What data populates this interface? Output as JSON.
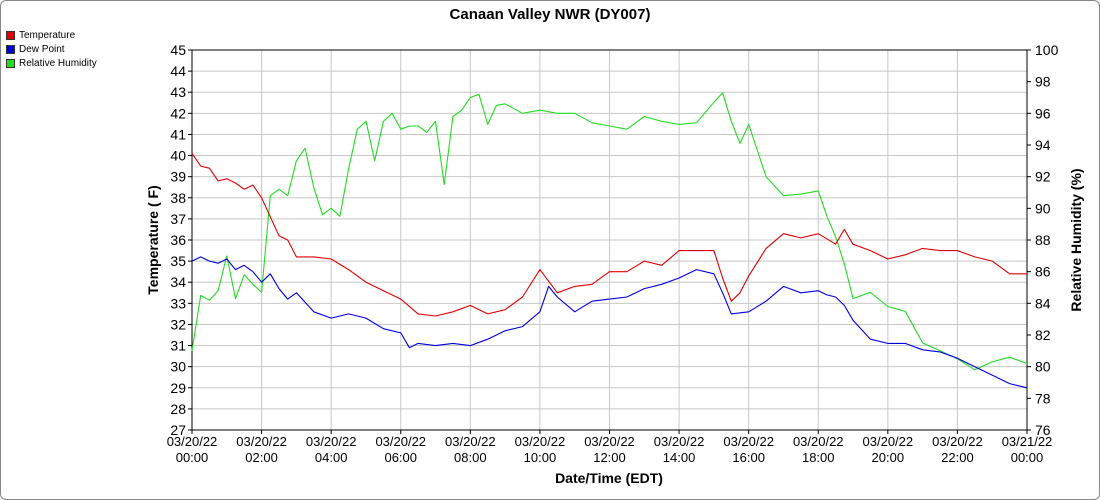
{
  "chart_data": {
    "type": "line",
    "title": "Canaan Valley NWR (DY007)",
    "xlabel": "Date/Time (EDT)",
    "ylabel": "Temperature ( F)",
    "y2label": "Relative Humidity (%)",
    "ylim": [
      27,
      45
    ],
    "y2lim": [
      76,
      100
    ],
    "xlim_hours": [
      0,
      24
    ],
    "x_tick_labels": [
      [
        "03/20/22",
        "00:00"
      ],
      [
        "03/20/22",
        "02:00"
      ],
      [
        "03/20/22",
        "04:00"
      ],
      [
        "03/20/22",
        "06:00"
      ],
      [
        "03/20/22",
        "08:00"
      ],
      [
        "03/20/22",
        "10:00"
      ],
      [
        "03/20/22",
        "12:00"
      ],
      [
        "03/20/22",
        "14:00"
      ],
      [
        "03/20/22",
        "16:00"
      ],
      [
        "03/20/22",
        "18:00"
      ],
      [
        "03/20/22",
        "20:00"
      ],
      [
        "03/20/22",
        "22:00"
      ],
      [
        "03/21/22",
        "00:00"
      ]
    ],
    "y_ticks": [
      27,
      28,
      29,
      30,
      31,
      32,
      33,
      34,
      35,
      36,
      37,
      38,
      39,
      40,
      41,
      42,
      43,
      44,
      45
    ],
    "y2_ticks": [
      76,
      78,
      80,
      82,
      84,
      86,
      88,
      90,
      92,
      94,
      96,
      98,
      100
    ],
    "grid": true,
    "legend_position": "top-left",
    "series": [
      {
        "name": "Temperature",
        "axis": "left",
        "color": "#e00000",
        "x": [
          0,
          0.25,
          0.5,
          0.75,
          1,
          1.25,
          1.5,
          1.75,
          2,
          2.25,
          2.5,
          2.75,
          3,
          3.5,
          4,
          4.5,
          5,
          5.5,
          6,
          6.5,
          7,
          7.5,
          8,
          8.5,
          9,
          9.5,
          10,
          10.5,
          11,
          11.5,
          12,
          12.5,
          13,
          13.5,
          14,
          14.5,
          15,
          15.25,
          15.5,
          15.75,
          16,
          16.5,
          17,
          17.5,
          18,
          18.5,
          18.75,
          19,
          19.5,
          20,
          20.5,
          21,
          21.5,
          22,
          22.5,
          23,
          23.5,
          24
        ],
        "values": [
          40.1,
          39.5,
          39.4,
          38.8,
          38.9,
          38.7,
          38.4,
          38.6,
          38,
          37.1,
          36.2,
          36,
          35.2,
          35.2,
          35.1,
          34.6,
          34,
          33.6,
          33.2,
          32.5,
          32.4,
          32.6,
          32.9,
          32.5,
          32.7,
          33.3,
          34.6,
          33.5,
          33.8,
          33.9,
          34.5,
          34.5,
          35,
          34.8,
          35.5,
          35.5,
          35.5,
          34.2,
          33.1,
          33.5,
          34.3,
          35.6,
          36.3,
          36.1,
          36.3,
          35.8,
          36.5,
          35.8,
          35.5,
          35.1,
          35.3,
          35.6,
          35.5,
          35.5,
          35.2,
          35.0,
          34.4,
          34.4
        ]
      },
      {
        "name": "Dew Point",
        "axis": "left",
        "color": "#0000dd",
        "x": [
          0,
          0.25,
          0.5,
          0.75,
          1,
          1.25,
          1.5,
          1.75,
          2,
          2.25,
          2.5,
          2.75,
          3,
          3.5,
          4,
          4.5,
          5,
          5.5,
          6,
          6.25,
          6.5,
          7,
          7.5,
          8,
          8.5,
          9,
          9.5,
          10,
          10.25,
          10.5,
          11,
          11.5,
          12,
          12.5,
          13,
          13.5,
          14,
          14.5,
          15,
          15.25,
          15.5,
          16,
          16.5,
          17,
          17.5,
          18,
          18.25,
          18.5,
          18.75,
          19,
          19.5,
          20,
          20.5,
          21,
          21.5,
          22,
          22.5,
          23,
          23.5,
          24
        ],
        "values": [
          35,
          35.2,
          35,
          34.9,
          35.1,
          34.6,
          34.8,
          34.5,
          34,
          34.4,
          33.7,
          33.2,
          33.5,
          32.6,
          32.3,
          32.5,
          32.3,
          31.8,
          31.6,
          30.9,
          31.1,
          31.0,
          31.1,
          31.0,
          31.3,
          31.7,
          31.9,
          32.6,
          33.8,
          33.3,
          32.6,
          33.1,
          33.2,
          33.3,
          33.7,
          33.9,
          34.2,
          34.6,
          34.4,
          33.5,
          32.5,
          32.6,
          33.1,
          33.8,
          33.5,
          33.6,
          33.4,
          33.3,
          32.9,
          32.2,
          31.3,
          31.1,
          31.1,
          30.8,
          30.7,
          30.4,
          30.0,
          29.6,
          29.2,
          29.0
        ]
      },
      {
        "name": "Relative Humidity",
        "axis": "right",
        "color": "#22dd22",
        "x": [
          0,
          0.25,
          0.5,
          0.75,
          1,
          1.25,
          1.5,
          1.75,
          2,
          2.25,
          2.5,
          2.75,
          3,
          3.25,
          3.5,
          3.75,
          4,
          4.25,
          4.5,
          4.75,
          5,
          5.25,
          5.5,
          5.75,
          6,
          6.25,
          6.5,
          6.75,
          7,
          7.25,
          7.5,
          7.75,
          8,
          8.25,
          8.5,
          8.75,
          9,
          9.5,
          10,
          10.5,
          11,
          11.5,
          12,
          12.5,
          13,
          13.5,
          14,
          14.5,
          15,
          15.25,
          15.5,
          15.75,
          16,
          16.5,
          17,
          17.5,
          18,
          18.25,
          18.5,
          18.75,
          19,
          19.5,
          20,
          20.5,
          21,
          21.5,
          22,
          22.5,
          23,
          23.5,
          24
        ],
        "values": [
          81,
          84.5,
          84.2,
          84.8,
          87,
          84.3,
          85.8,
          85.2,
          84.7,
          90.8,
          91.2,
          90.8,
          93,
          93.8,
          91.3,
          89.6,
          90,
          89.5,
          92.5,
          95,
          95.5,
          93,
          95.5,
          96,
          95,
          95.2,
          95.2,
          94.8,
          95.5,
          91.5,
          95.8,
          96.2,
          97,
          97.2,
          95.3,
          96.5,
          96.6,
          96,
          96.2,
          96,
          96,
          95.4,
          95.2,
          95,
          95.8,
          95.5,
          95.3,
          95.4,
          96.7,
          97.3,
          95.5,
          94.1,
          95.3,
          92,
          90.8,
          90.9,
          91.1,
          89.5,
          88.2,
          86.5,
          84.3,
          84.7,
          83.8,
          83.5,
          81.5,
          81,
          80.5,
          79.8,
          80.3,
          80.6,
          80.2
        ]
      }
    ]
  }
}
